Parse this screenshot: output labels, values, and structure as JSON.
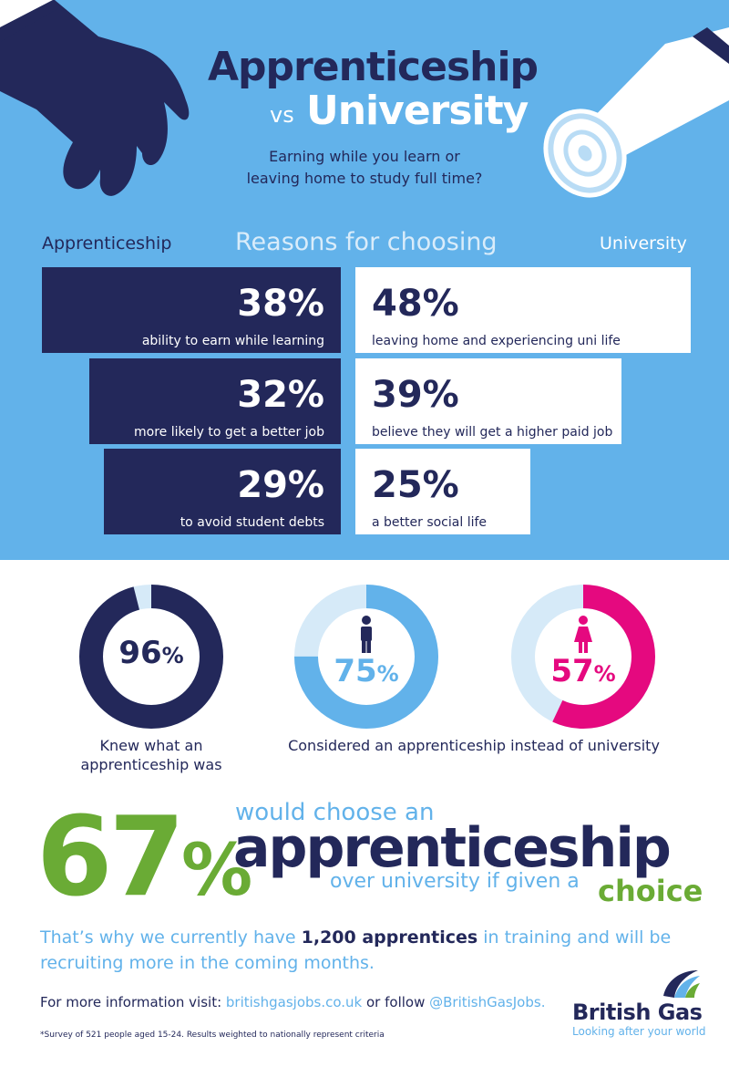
{
  "header": {
    "title_line1": "Apprenticeship",
    "title_vs": "vs",
    "title_line2": "University",
    "subtitle_line1": "Earning while you learn or",
    "subtitle_line2": "leaving home to study full time?"
  },
  "reasons": {
    "left_label": "Apprenticeship",
    "center_label": "Reasons for choosing",
    "right_label": "University",
    "apprenticeship": [
      {
        "value": 38,
        "pct": "38%",
        "desc": "ability to earn while learning"
      },
      {
        "value": 32,
        "pct": "32%",
        "desc": "more likely to get a better job"
      },
      {
        "value": 29,
        "pct": "29%",
        "desc": "to avoid student debts"
      }
    ],
    "university": [
      {
        "value": 48,
        "pct": "48%",
        "desc": "leaving home and experiencing uni life"
      },
      {
        "value": 39,
        "pct": "39%",
        "desc": "believe they will get a higher paid job"
      },
      {
        "value": 25,
        "pct": "25%",
        "desc": "a better social life"
      }
    ]
  },
  "rings": [
    {
      "value": 96,
      "num": "96",
      "unit": "%",
      "color": "#23285a",
      "track": "#d6eaf8",
      "icon": "none"
    },
    {
      "value": 75,
      "num": "75",
      "unit": "%",
      "color": "#62b2ea",
      "track": "#d6eaf8",
      "icon": "male-icon"
    },
    {
      "value": 57,
      "num": "57",
      "unit": "%",
      "color": "#e5097f",
      "track": "#d6eaf8",
      "icon": "female-icon"
    }
  ],
  "ring_labels": {
    "knew_line1": "Knew what an",
    "knew_line2": "apprenticeship was",
    "considered": "Considered an apprenticeship instead of university"
  },
  "headline": {
    "big_num": "67",
    "big_unit": "%",
    "would": "would choose an",
    "apprenticeship": "apprenticeship",
    "over": "over university if given a",
    "choice": "choice"
  },
  "body": {
    "text_a": "That’s why we currently have ",
    "text_bold": "1,200 apprentices",
    "text_b": " in training and will be recruiting more in the coming months."
  },
  "info": {
    "prefix": "For more information visit: ",
    "site": "britishgasjobs.co.uk",
    "mid": " or follow ",
    "handle": "@BritishGasJobs."
  },
  "footnote": "*Survey of 521 people aged 15-24. Results weighted to nationally represent criteria",
  "brand": {
    "name": "British Gas",
    "tagline": "Looking after your world"
  },
  "colors": {
    "navy": "#23285a",
    "sky": "#62b2ea",
    "green": "#6aab35",
    "pink": "#e5097f"
  }
}
